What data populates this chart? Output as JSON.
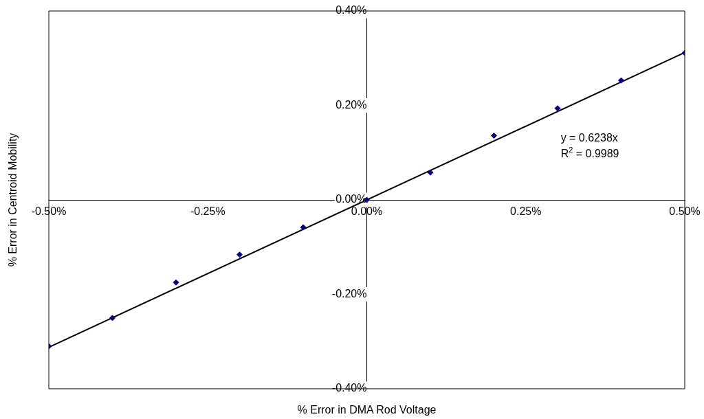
{
  "chart_data": {
    "type": "scatter",
    "xlabel": "% Error in DMA Rod Voltage",
    "ylabel": "% Error in Centroid Mobility",
    "x": [
      -0.5,
      -0.4,
      -0.3,
      -0.2,
      -0.1,
      0,
      0.1,
      0.2,
      0.3,
      0.4,
      0.5
    ],
    "series": [
      {
        "type": "scatter",
        "color": "#000080",
        "marker": "diamond",
        "values": [
          -0.31,
          -0.25,
          -0.175,
          -0.116,
          -0.058,
          0,
          0.058,
          0.136,
          0.194,
          0.253,
          0.311
        ]
      },
      {
        "type": "line",
        "color": "#000000",
        "marker": "none",
        "x": [
          -0.5,
          0.5
        ],
        "values": [
          -0.312,
          0.312
        ]
      }
    ],
    "xlim": [
      -0.5,
      0.5
    ],
    "xticks": [
      {
        "value": -0.5,
        "label": "-0.50%"
      },
      {
        "value": -0.25,
        "label": "-0.25%"
      },
      {
        "value": 0,
        "label": "0.00%"
      },
      {
        "value": 0.25,
        "label": "0.25%"
      },
      {
        "value": 0.5,
        "label": "0.50%"
      }
    ],
    "ylim": [
      -0.4,
      0.4
    ],
    "yticks": [
      {
        "value": -0.4,
        "label": "-0.40%"
      },
      {
        "value": -0.2,
        "label": "-0.20%"
      },
      {
        "value": 0,
        "label": "0.00%"
      },
      {
        "value": 0.2,
        "label": "0.20%"
      },
      {
        "value": 0.4,
        "label": "0.40%"
      }
    ],
    "grid": false,
    "legend": false,
    "annotations": [
      "y = 0.6238x",
      "R$^{2}$ = 0.9989"
    ]
  }
}
